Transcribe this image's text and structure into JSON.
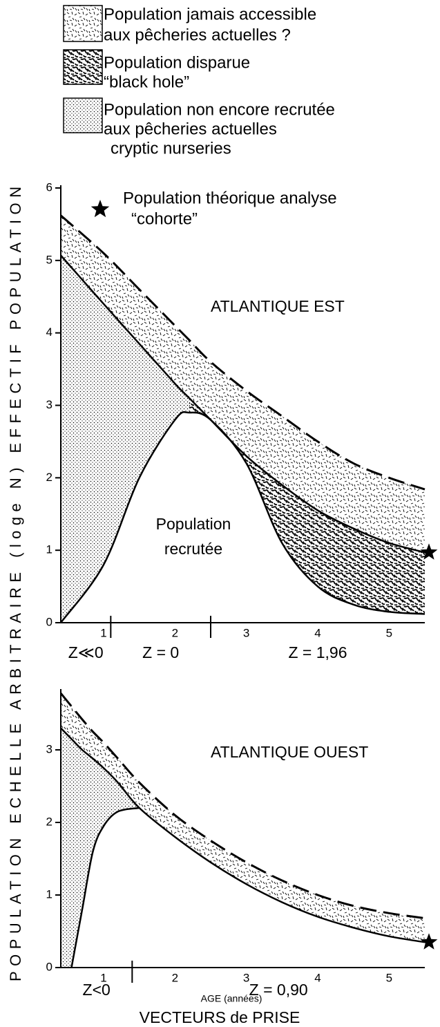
{
  "legend": [
    {
      "lines": [
        "Population jamais accessible",
        "aux pêcheries actuelles ?"
      ],
      "pattern": "dashes"
    },
    {
      "lines": [
        "Population disparue",
        "“black hole”"
      ],
      "pattern": "squiggle"
    },
    {
      "lines": [
        "Population non encore recrutée",
        "aux pêcheries actuelles",
        "cryptic nurseries"
      ],
      "pattern": "dots"
    }
  ],
  "star_legend": [
    "Population théorique analyse",
    "“cohorte”"
  ],
  "ylabel": "POPULATION ECHELLE ARBITRAIRE (loge N) EFFECTIF POPULATION",
  "xlabel": "AGE (années)",
  "footer": "VECTEURS de PRISE",
  "chart_data": [
    {
      "type": "area",
      "annotations": [
        "ATLANTIQUE EST",
        "Population",
        "recrutée"
      ],
      "x": [
        0.4,
        1,
        1.5,
        2,
        2.2,
        2.5,
        3,
        3.5,
        4,
        4.5,
        5,
        5.5
      ],
      "series": [
        {
          "style": "dashed",
          "color": "#000000",
          "values": [
            5.62,
            5.1,
            4.6,
            4.1,
            3.9,
            3.6,
            3.2,
            2.85,
            2.5,
            2.2,
            2.0,
            1.84
          ]
        },
        {
          "style": "solid",
          "color": "#000000",
          "values": [
            5.07,
            4.4,
            3.85,
            3.3,
            3.1,
            2.8,
            2.3,
            1.9,
            1.55,
            1.3,
            1.1,
            0.97
          ]
        },
        {
          "style": "solid",
          "color": "#000000",
          "values": [
            0,
            0.8,
            2.0,
            2.8,
            2.9,
            2.8,
            2.2,
            1.1,
            0.5,
            0.25,
            0.15,
            0.12
          ]
        }
      ],
      "xlim": [
        0.4,
        5.5
      ],
      "ylim": [
        0,
        6
      ],
      "xticks": [
        1,
        2,
        3,
        4,
        5
      ],
      "yticks": [
        0,
        1,
        2,
        3,
        4,
        5,
        6
      ],
      "zones": [
        "Z≪0",
        "Z = 0",
        "Z = 1,96"
      ],
      "zone_breaks": [
        1.1,
        2.5
      ],
      "end_marker": "star"
    },
    {
      "type": "area",
      "annotations": [
        "ATLANTIQUE OUEST"
      ],
      "x": [
        0.4,
        0.55,
        0.7,
        0.85,
        1,
        1.2,
        1.5,
        2,
        2.5,
        3,
        3.5,
        4,
        4.5,
        5,
        5.5
      ],
      "series": [
        {
          "style": "dashed",
          "color": "#000000",
          "values": [
            3.78,
            3.6,
            3.42,
            3.25,
            3.1,
            2.88,
            2.55,
            2.1,
            1.75,
            1.45,
            1.2,
            1.0,
            0.85,
            0.75,
            0.68
          ]
        },
        {
          "style": "solid",
          "color": "#000000",
          "values": [
            3.3,
            3.15,
            3.0,
            2.88,
            2.75,
            2.55,
            2.2,
            1.8,
            1.45,
            1.15,
            0.9,
            0.7,
            0.55,
            0.43,
            0.35
          ]
        },
        {
          "style": "solid",
          "color": "#000000",
          "values": [
            null,
            0,
            0.8,
            1.6,
            1.95,
            2.15,
            2.2,
            null,
            null,
            null,
            null,
            null,
            null,
            null,
            null
          ]
        }
      ],
      "xlim": [
        0.4,
        5.5
      ],
      "ylim": [
        0,
        3.8
      ],
      "xticks": [
        1,
        2,
        3,
        4,
        5
      ],
      "yticks": [
        0,
        1,
        2,
        3
      ],
      "zones": [
        "Z<0",
        "Z = 0,90"
      ],
      "zone_breaks": [
        1.4
      ],
      "end_marker": "star"
    }
  ]
}
